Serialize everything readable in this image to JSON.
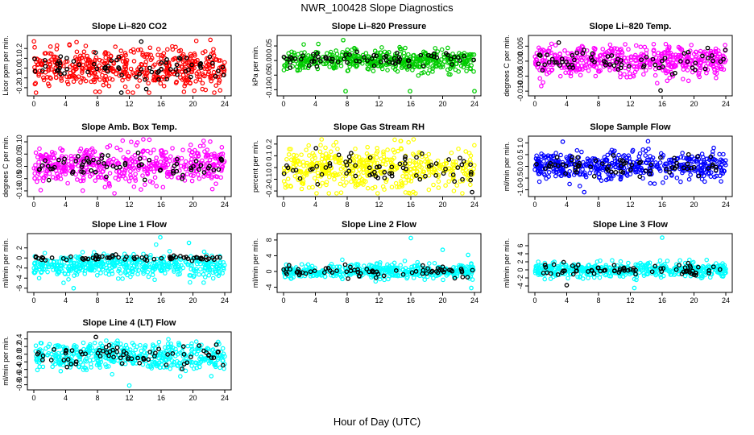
{
  "figure": {
    "title": "NWR_100428  Slope Diagnostics",
    "xlabel": "Hour of Day (UTC)"
  },
  "chart_data": [
    {
      "type": "scatter",
      "title": "Slope Li–820 CO2",
      "ylabel": "Licor ppm per min.",
      "color": "#ff0000",
      "xlim": [
        0,
        24
      ],
      "xticks": [
        0,
        4,
        8,
        12,
        16,
        20,
        24
      ],
      "ylim": [
        -0.25,
        0.3
      ],
      "yticks": [
        -0.2,
        -0.1,
        0.0,
        0.1,
        0.2
      ],
      "yticklabels": [
        "-0.2",
        "-0.1",
        "0.0",
        "0.1",
        "0.2"
      ],
      "center": 0.0,
      "spread": 0.1,
      "n": 480,
      "outliers": [
        {
          "x": 11,
          "y": -0.25,
          "series": "black"
        },
        {
          "x": 13.5,
          "y": 0.27,
          "series": "black"
        }
      ]
    },
    {
      "type": "scatter",
      "title": "Slope Li–820 Pressure",
      "ylabel": "kPa per min.",
      "color": "#00cc00",
      "xlim": [
        0,
        24
      ],
      "xticks": [
        0,
        4,
        8,
        12,
        16,
        20,
        24
      ],
      "ylim": [
        -0.11,
        0.075
      ],
      "yticks": [
        -0.1,
        -0.05,
        0.0,
        0.05
      ],
      "yticklabels": [
        "-0.10",
        "-0.05",
        "0.00",
        "0.05"
      ],
      "center": 0.0,
      "spread": 0.018,
      "n": 460,
      "outliers": [
        {
          "x": 7.8,
          "y": -0.105,
          "series": "main"
        },
        {
          "x": 15.9,
          "y": -0.105,
          "series": "main"
        },
        {
          "x": 24,
          "y": -0.105,
          "series": "main"
        },
        {
          "x": 7.5,
          "y": 0.07,
          "series": "main"
        }
      ]
    },
    {
      "type": "scatter",
      "title": "Slope Li–820 Temp.",
      "ylabel": "degrees C per min.",
      "color": "#ff00ff",
      "xlim": [
        0,
        24
      ],
      "xticks": [
        0,
        4,
        8,
        12,
        16,
        20,
        24
      ],
      "ylim": [
        -0.0105,
        0.0075
      ],
      "yticks": [
        -0.01,
        -0.005,
        0.0,
        0.005
      ],
      "yticklabels": [
        "-0.010",
        "-0.005",
        "0.000",
        "0.005"
      ],
      "center": 0.0,
      "spread": 0.0025,
      "n": 480,
      "outliers": [
        {
          "x": 3,
          "y": 0.0062,
          "series": "black"
        },
        {
          "x": 15.8,
          "y": -0.0098,
          "series": "black"
        }
      ]
    },
    {
      "type": "scatter",
      "title": "Slope Amb. Box Temp.",
      "ylabel": "degrees C per min.",
      "color": "#ff00ff",
      "xlim": [
        0,
        24
      ],
      "xticks": [
        0,
        4,
        8,
        12,
        16,
        20,
        24
      ],
      "ylim": [
        -0.11,
        0.11
      ],
      "yticks": [
        -0.1,
        -0.05,
        0.0,
        0.05,
        0.1
      ],
      "yticklabels": [
        "-0.10",
        "-0.05",
        "0.00",
        "0.05",
        "0.10"
      ],
      "center": 0.0,
      "spread": 0.04,
      "n": 480,
      "outliers": []
    },
    {
      "type": "scatter",
      "title": "Slope Gas Stream RH",
      "ylabel": "percent per min.",
      "color": "#ffff00",
      "xlim": [
        0,
        24
      ],
      "xticks": [
        0,
        4,
        8,
        12,
        16,
        20,
        24
      ],
      "ylim": [
        -0.22,
        0.24
      ],
      "yticks": [
        -0.2,
        -0.1,
        0.0,
        0.1,
        0.2
      ],
      "yticklabels": [
        "-0.2",
        "-0.1",
        "0.0",
        "0.1",
        "0.2"
      ],
      "center": 0.0,
      "spread": 0.09,
      "n": 470,
      "outliers": [
        {
          "x": 23.7,
          "y": -0.21,
          "series": "black"
        }
      ]
    },
    {
      "type": "scatter",
      "title": "Slope Sample Flow",
      "ylabel": "ml/min per min.",
      "color": "#0000ff",
      "xlim": [
        0,
        24
      ],
      "xticks": [
        0,
        4,
        8,
        12,
        16,
        20,
        24
      ],
      "ylim": [
        -1.15,
        1.15
      ],
      "yticks": [
        -1.0,
        -0.5,
        0.0,
        0.5,
        1.0
      ],
      "yticklabels": [
        "-1.0",
        "-0.5",
        "0.0",
        "0.5",
        "1.0"
      ],
      "center": 0.0,
      "spread": 0.3,
      "n": 480,
      "outliers": [
        {
          "x": 3.5,
          "y": 1.05,
          "series": "main"
        },
        {
          "x": 6.2,
          "y": -1.1,
          "series": "main"
        }
      ]
    },
    {
      "type": "scatter",
      "title": "Slope Line 1 Flow",
      "ylabel": "ml/min per min.",
      "color": "#00ffff",
      "xlim": [
        0,
        24
      ],
      "xticks": [
        0,
        4,
        8,
        12,
        16,
        20,
        24
      ],
      "ylim": [
        -6.2,
        4.2
      ],
      "yticks": [
        -6,
        -4,
        -2,
        0,
        2
      ],
      "yticklabels": [
        "-6",
        "-4",
        "-2",
        "0",
        "2"
      ],
      "center": -1.5,
      "spread": 1.1,
      "black_center": 0.0,
      "n": 470,
      "outliers": [
        {
          "x": 15.9,
          "y": 4.1,
          "series": "main"
        },
        {
          "x": 19.5,
          "y": 3.0,
          "series": "main"
        },
        {
          "x": 5,
          "y": -6,
          "series": "main"
        }
      ]
    },
    {
      "type": "scatter",
      "title": "Slope Line 2 Flow",
      "ylabel": "ml/min per min.",
      "color": "#00ffff",
      "xlim": [
        0,
        24
      ],
      "xticks": [
        0,
        4,
        8,
        12,
        16,
        20,
        24
      ],
      "ylim": [
        -4.5,
        8.8
      ],
      "yticks": [
        -4,
        0,
        4,
        8
      ],
      "yticklabels": [
        "-4",
        "0",
        "4",
        "8"
      ],
      "center": 0.0,
      "spread": 0.9,
      "n": 470,
      "outliers": [
        {
          "x": 16,
          "y": 8.5,
          "series": "main"
        },
        {
          "x": 20,
          "y": 5.5,
          "series": "main"
        },
        {
          "x": 23.6,
          "y": -4.2,
          "series": "main"
        },
        {
          "x": 23.2,
          "y": 4.2,
          "series": "main"
        }
      ]
    },
    {
      "type": "scatter",
      "title": "Slope Line 3 Flow",
      "ylabel": "ml/min per min.",
      "color": "#00ffff",
      "xlim": [
        0,
        24
      ],
      "xticks": [
        0,
        4,
        8,
        12,
        16,
        20,
        24
      ],
      "ylim": [
        -4.8,
        8.2
      ],
      "yticks": [
        -4,
        -2,
        0,
        2,
        4,
        6
      ],
      "yticklabels": [
        "-4",
        "-2",
        "0",
        "2",
        "4",
        "6"
      ],
      "center": 0.0,
      "spread": 0.9,
      "n": 470,
      "outliers": [
        {
          "x": 16,
          "y": 8.0,
          "series": "main"
        },
        {
          "x": 12.5,
          "y": -4.5,
          "series": "main"
        },
        {
          "x": 4,
          "y": -3.8,
          "series": "black"
        }
      ]
    },
    {
      "type": "scatter",
      "title": "Slope Line 4 (LT) Flow",
      "ylabel": "ml/min per min.",
      "color": "#00ffff",
      "xlim": [
        0,
        24
      ],
      "xticks": [
        0,
        4,
        8,
        12,
        16,
        20,
        24
      ],
      "ylim": [
        -0.85,
        0.5
      ],
      "yticks": [
        -0.8,
        -0.6,
        -0.4,
        -0.2,
        0.0,
        0.2,
        0.4
      ],
      "yticklabels": [
        "-0.8",
        "-0.6",
        "-0.4",
        "-0.2",
        "0.0",
        "0.2",
        "0.4"
      ],
      "center": -0.05,
      "spread": 0.18,
      "n": 470,
      "outliers": [
        {
          "x": 7.8,
          "y": 0.45,
          "series": "black"
        },
        {
          "x": 12,
          "y": -0.82,
          "series": "main"
        }
      ]
    }
  ]
}
